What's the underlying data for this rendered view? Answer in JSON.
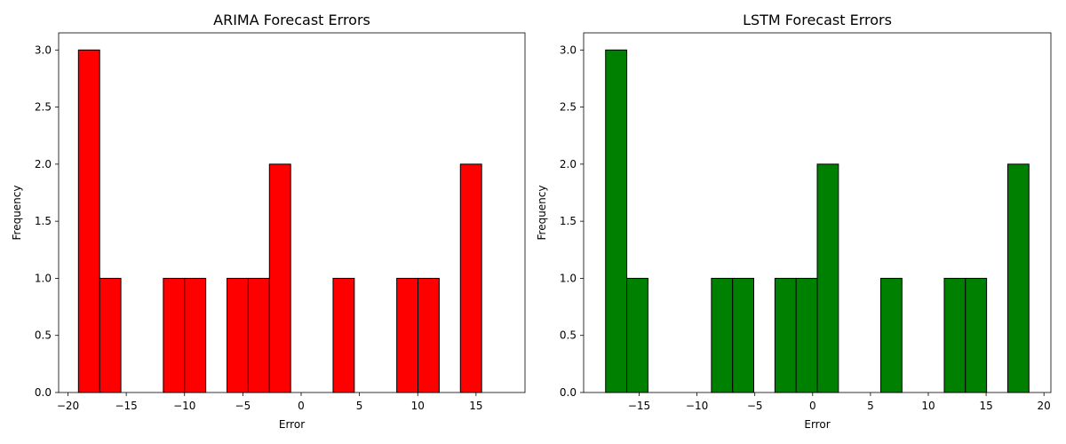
{
  "chart_data": [
    {
      "type": "bar",
      "title": "ARIMA Forecast Errors",
      "xlabel": "Error",
      "ylabel": "Frequency",
      "xlim": [
        -20.8,
        19.2
      ],
      "ylim": [
        0,
        3.15
      ],
      "xticks": [
        -20,
        -15,
        -10,
        -5,
        0,
        5,
        10,
        15
      ],
      "xtick_labels": [
        "−20",
        "−15",
        "−10",
        "−5",
        "0",
        "5",
        "10",
        "15"
      ],
      "yticks": [
        0,
        0.5,
        1.0,
        1.5,
        2.0,
        2.5,
        3.0
      ],
      "ytick_labels": [
        "0.0",
        "0.5",
        "1.0",
        "1.5",
        "2.0",
        "2.5",
        "3.0"
      ],
      "bin_start": -19.1,
      "bin_width": 1.82,
      "values": [
        3,
        1,
        0,
        0,
        1,
        1,
        0,
        1,
        1,
        2,
        0,
        0,
        1,
        0,
        0,
        1,
        1,
        0,
        2
      ],
      "color": "#ff0000",
      "edge_color": "#000000"
    },
    {
      "type": "bar",
      "title": "LSTM Forecast Errors",
      "xlabel": "Error",
      "ylabel": "Frequency",
      "xlim": [
        -19.8,
        20.6
      ],
      "ylim": [
        0,
        3.15
      ],
      "xticks": [
        -15,
        -10,
        -5,
        0,
        5,
        10,
        15,
        20
      ],
      "xtick_labels": [
        "−15",
        "−10",
        "−5",
        "0",
        "5",
        "10",
        "15",
        "20"
      ],
      "yticks": [
        0,
        0.5,
        1.0,
        1.5,
        2.0,
        2.5,
        3.0
      ],
      "ytick_labels": [
        "0.0",
        "0.5",
        "1.0",
        "1.5",
        "2.0",
        "2.5",
        "3.0"
      ],
      "bin_start": -17.9,
      "bin_width": 1.83,
      "values": [
        3,
        1,
        0,
        0,
        0,
        1,
        1,
        0,
        1,
        1,
        2,
        0,
        0,
        1,
        0,
        0,
        1,
        1,
        0,
        2
      ],
      "color": "#008000",
      "edge_color": "#000000"
    }
  ]
}
